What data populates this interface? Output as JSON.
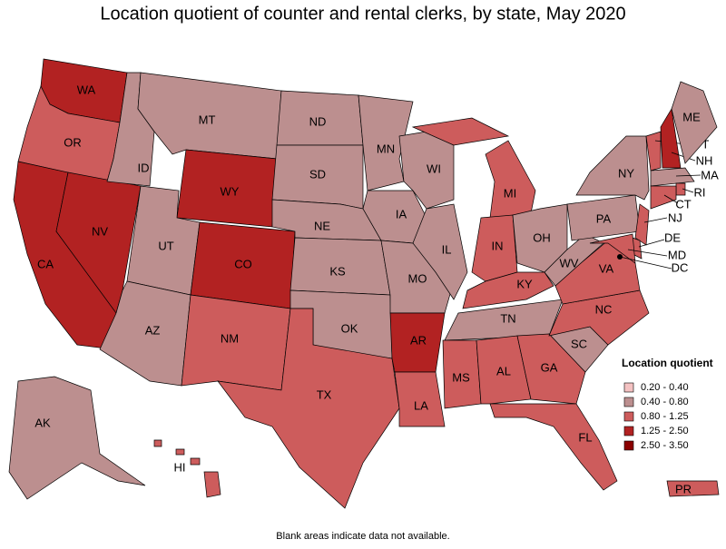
{
  "header": {
    "title": "Location quotient of counter and rental clerks, by state, May 2020"
  },
  "states": [
    {
      "label": "WA",
      "color": "#b22222"
    },
    {
      "label": "OR",
      "color": "#cd5c5c"
    },
    {
      "label": "CA",
      "color": "#b22222"
    },
    {
      "label": "NV",
      "color": "#b22222"
    },
    {
      "label": "ID",
      "color": "#bc8f8f"
    },
    {
      "label": "MT",
      "color": "#bc8f8f"
    },
    {
      "label": "WY",
      "color": "#b22222"
    },
    {
      "label": "UT",
      "color": "#bc8f8f"
    },
    {
      "label": "CO",
      "color": "#b22222"
    },
    {
      "label": "AZ",
      "color": "#bc8f8f"
    },
    {
      "label": "NM",
      "color": "#cd5c5c"
    },
    {
      "label": "ND",
      "color": "#bc8f8f"
    },
    {
      "label": "SD",
      "color": "#bc8f8f"
    },
    {
      "label": "NE",
      "color": "#bc8f8f"
    },
    {
      "label": "KS",
      "color": "#bc8f8f"
    },
    {
      "label": "OK",
      "color": "#bc8f8f"
    },
    {
      "label": "TX",
      "color": "#cd5c5c"
    },
    {
      "label": "MN",
      "color": "#bc8f8f"
    },
    {
      "label": "IA",
      "color": "#bc8f8f"
    },
    {
      "label": "MO",
      "color": "#bc8f8f"
    },
    {
      "label": "AR",
      "color": "#b22222"
    },
    {
      "label": "LA",
      "color": "#cd5c5c"
    },
    {
      "label": "WI",
      "color": "#bc8f8f"
    },
    {
      "label": "IL",
      "color": "#bc8f8f"
    },
    {
      "label": "MI",
      "color": "#cd5c5c"
    },
    {
      "label": "IN",
      "color": "#cd5c5c"
    },
    {
      "label": "OH",
      "color": "#bc8f8f"
    },
    {
      "label": "KY",
      "color": "#cd5c5c"
    },
    {
      "label": "TN",
      "color": "#bc8f8f"
    },
    {
      "label": "MS",
      "color": "#cd5c5c"
    },
    {
      "label": "AL",
      "color": "#cd5c5c"
    },
    {
      "label": "GA",
      "color": "#cd5c5c"
    },
    {
      "label": "FL",
      "color": "#cd5c5c"
    },
    {
      "label": "SC",
      "color": "#bc8f8f"
    },
    {
      "label": "NC",
      "color": "#cd5c5c"
    },
    {
      "label": "VA",
      "color": "#cd5c5c"
    },
    {
      "label": "WV",
      "color": "#bc8f8f"
    },
    {
      "label": "PA",
      "color": "#bc8f8f"
    },
    {
      "label": "NY",
      "color": "#bc8f8f"
    },
    {
      "label": "NJ",
      "color": "#cd5c5c"
    },
    {
      "label": "DE",
      "color": "#cd5c5c"
    },
    {
      "label": "MD",
      "color": "#cd5c5c"
    },
    {
      "label": "DC",
      "color": "#b22222"
    },
    {
      "label": "VT",
      "color": "#cd5c5c"
    },
    {
      "label": "NH",
      "color": "#b22222"
    },
    {
      "label": "ME",
      "color": "#bc8f8f"
    },
    {
      "label": "MA",
      "color": "#bc8f8f"
    },
    {
      "label": "RI",
      "color": "#cd5c5c"
    },
    {
      "label": "CT",
      "color": "#cd5c5c"
    },
    {
      "label": "AK",
      "color": "#bc8f8f"
    },
    {
      "label": "HI",
      "color": "#cd5c5c"
    },
    {
      "label": "PR",
      "color": "#cd5c5c"
    }
  ],
  "legend": {
    "title": "Location quotient",
    "items": [
      {
        "label": "0.20 - 0.40",
        "color": "#f4c2c2"
      },
      {
        "label": "0.40 - 0.80",
        "color": "#bc8f8f"
      },
      {
        "label": "0.80 - 1.25",
        "color": "#cd5c5c"
      },
      {
        "label": "1.25 - 2.50",
        "color": "#b22222"
      },
      {
        "label": "2.50 - 3.50",
        "color": "#8b0000"
      }
    ]
  },
  "footnote": "Blank areas indicate data not available."
}
